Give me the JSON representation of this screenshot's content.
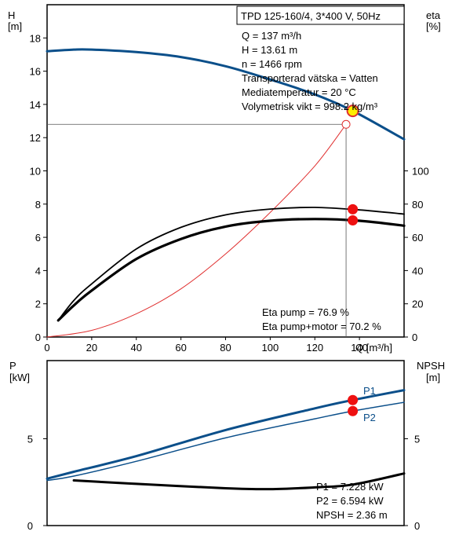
{
  "chart_data": [
    {
      "type": "line",
      "title": "TPD 125-160/4, 3*400 V, 50Hz",
      "x_label": "Q [m³/h]",
      "xlim": [
        0,
        160
      ],
      "x_ticks": [
        "0",
        "20",
        "40",
        "60",
        "80",
        "100",
        "120",
        "140"
      ],
      "left_axis": {
        "label_line1": "H",
        "label_line2": "[m]",
        "ylim": [
          0,
          20
        ],
        "ticks": [
          "0",
          "2",
          "4",
          "6",
          "8",
          "10",
          "12",
          "14",
          "16",
          "18"
        ]
      },
      "right_axis": {
        "label_line1": "eta",
        "label_line2": "[%]",
        "ylim": [
          0,
          200
        ],
        "ticks": [
          "0",
          "20",
          "40",
          "60",
          "80",
          "100"
        ]
      },
      "info_lines": [
        "Q = 137 m³/h",
        "H = 13.61 m",
        "n = 1466 rpm",
        "Transporterad vätska = Vatten",
        "Mediatemperatur = 20 °C",
        "Volymetrisk vikt = 998.2 kg/m³"
      ],
      "efficiency_lines": [
        "Eta pump = 76.9 %",
        "Eta pump+motor = 70.2 %"
      ],
      "series": [
        {
          "axis": "left",
          "color": "#0b4f8a",
          "width": 3,
          "x": [
            0,
            12,
            20,
            40,
            60,
            80,
            100,
            120,
            137,
            160
          ],
          "y": [
            17.2,
            17.3,
            17.3,
            17.15,
            16.85,
            16.3,
            15.5,
            14.6,
            13.61,
            11.9
          ]
        },
        {
          "axis": "left",
          "color": "#e03030",
          "width": 1,
          "x": [
            0,
            20,
            40,
            60,
            80,
            100,
            120,
            134
          ],
          "y": [
            0,
            0.4,
            1.4,
            2.9,
            5.0,
            7.5,
            10.3,
            12.8
          ]
        },
        {
          "axis": "right",
          "color": "#000000",
          "width": 1.8,
          "x": [
            5,
            12,
            20,
            40,
            60,
            80,
            100,
            120,
            140,
            160
          ],
          "y": [
            10,
            22,
            32,
            53,
            66,
            73.5,
            77,
            78,
            76.5,
            74
          ]
        },
        {
          "axis": "right",
          "color": "#000000",
          "width": 3.2,
          "x": [
            5,
            12,
            20,
            40,
            60,
            80,
            100,
            120,
            140,
            160
          ],
          "y": [
            10,
            19,
            28,
            47,
            59,
            66.5,
            70,
            71,
            70,
            67
          ]
        }
      ],
      "operating_point": {
        "x": 137,
        "y": 13.61
      },
      "system_end_point": {
        "x": 134,
        "y": 12.8
      },
      "eta_points": [
        {
          "x": 137,
          "y": 76.9
        },
        {
          "x": 137,
          "y": 70.2
        }
      ],
      "style": {
        "duty_point_fill": "#ffee00",
        "duty_point_stroke": "#e03030",
        "marker_color": "#ee1111"
      }
    },
    {
      "type": "line",
      "xlim": [
        0,
        160
      ],
      "left_axis": {
        "label_line1": "P",
        "label_line2": "[kW]",
        "ylim": [
          0,
          9.5
        ],
        "ticks": [
          "0",
          "5"
        ]
      },
      "right_axis": {
        "label_line1": "NPSH",
        "label_line2": "[m]",
        "ylim": [
          0,
          9.5
        ],
        "ticks": [
          "0",
          "5"
        ]
      },
      "value_lines": [
        "P1 = 7.228 kW",
        "P2 = 6.594 kW",
        "NPSH = 2.36 m"
      ],
      "series": [
        {
          "name": "P1",
          "axis": "left",
          "color": "#0b4f8a",
          "width": 3,
          "x": [
            0,
            12,
            40,
            80,
            120,
            137,
            160
          ],
          "y": [
            2.7,
            3.1,
            4.0,
            5.5,
            6.75,
            7.228,
            7.8
          ]
        },
        {
          "name": "P2",
          "axis": "left",
          "color": "#0b4f8a",
          "width": 1.5,
          "x": [
            0,
            12,
            40,
            80,
            120,
            137,
            160
          ],
          "y": [
            2.6,
            2.85,
            3.7,
            5.05,
            6.15,
            6.594,
            7.1
          ]
        },
        {
          "name": "",
          "axis": "right",
          "color": "#000000",
          "width": 3,
          "x": [
            12,
            40,
            80,
            100,
            120,
            137,
            160
          ],
          "y": [
            2.6,
            2.4,
            2.15,
            2.1,
            2.2,
            2.36,
            3.0
          ]
        }
      ],
      "points": [
        {
          "x": 137,
          "y": 7.228
        },
        {
          "x": 137,
          "y": 6.594
        }
      ],
      "style": {
        "marker_color": "#ee1111"
      }
    }
  ]
}
